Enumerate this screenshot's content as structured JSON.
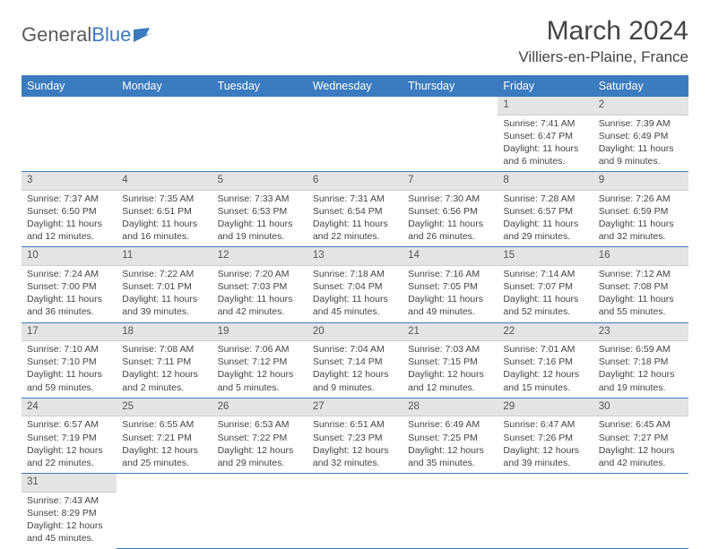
{
  "brand": {
    "part1": "General",
    "part2": "Blue"
  },
  "title": "March 2024",
  "location": "Villiers-en-Plaine, France",
  "colors": {
    "header_bg": "#3b7bbf",
    "header_text": "#ffffff",
    "daynum_bg": "#e4e4e4",
    "border": "#3b7bbf",
    "text": "#444444",
    "logo_gray": "#5a5a5a",
    "logo_blue": "#3b7bbf"
  },
  "weekdays": [
    "Sunday",
    "Monday",
    "Tuesday",
    "Wednesday",
    "Thursday",
    "Friday",
    "Saturday"
  ],
  "weeks": [
    [
      null,
      null,
      null,
      null,
      null,
      {
        "n": "1",
        "sr": "Sunrise: 7:41 AM",
        "ss": "Sunset: 6:47 PM",
        "dl1": "Daylight: 11 hours",
        "dl2": "and 6 minutes."
      },
      {
        "n": "2",
        "sr": "Sunrise: 7:39 AM",
        "ss": "Sunset: 6:49 PM",
        "dl1": "Daylight: 11 hours",
        "dl2": "and 9 minutes."
      }
    ],
    [
      {
        "n": "3",
        "sr": "Sunrise: 7:37 AM",
        "ss": "Sunset: 6:50 PM",
        "dl1": "Daylight: 11 hours",
        "dl2": "and 12 minutes."
      },
      {
        "n": "4",
        "sr": "Sunrise: 7:35 AM",
        "ss": "Sunset: 6:51 PM",
        "dl1": "Daylight: 11 hours",
        "dl2": "and 16 minutes."
      },
      {
        "n": "5",
        "sr": "Sunrise: 7:33 AM",
        "ss": "Sunset: 6:53 PM",
        "dl1": "Daylight: 11 hours",
        "dl2": "and 19 minutes."
      },
      {
        "n": "6",
        "sr": "Sunrise: 7:31 AM",
        "ss": "Sunset: 6:54 PM",
        "dl1": "Daylight: 11 hours",
        "dl2": "and 22 minutes."
      },
      {
        "n": "7",
        "sr": "Sunrise: 7:30 AM",
        "ss": "Sunset: 6:56 PM",
        "dl1": "Daylight: 11 hours",
        "dl2": "and 26 minutes."
      },
      {
        "n": "8",
        "sr": "Sunrise: 7:28 AM",
        "ss": "Sunset: 6:57 PM",
        "dl1": "Daylight: 11 hours",
        "dl2": "and 29 minutes."
      },
      {
        "n": "9",
        "sr": "Sunrise: 7:26 AM",
        "ss": "Sunset: 6:59 PM",
        "dl1": "Daylight: 11 hours",
        "dl2": "and 32 minutes."
      }
    ],
    [
      {
        "n": "10",
        "sr": "Sunrise: 7:24 AM",
        "ss": "Sunset: 7:00 PM",
        "dl1": "Daylight: 11 hours",
        "dl2": "and 36 minutes."
      },
      {
        "n": "11",
        "sr": "Sunrise: 7:22 AM",
        "ss": "Sunset: 7:01 PM",
        "dl1": "Daylight: 11 hours",
        "dl2": "and 39 minutes."
      },
      {
        "n": "12",
        "sr": "Sunrise: 7:20 AM",
        "ss": "Sunset: 7:03 PM",
        "dl1": "Daylight: 11 hours",
        "dl2": "and 42 minutes."
      },
      {
        "n": "13",
        "sr": "Sunrise: 7:18 AM",
        "ss": "Sunset: 7:04 PM",
        "dl1": "Daylight: 11 hours",
        "dl2": "and 45 minutes."
      },
      {
        "n": "14",
        "sr": "Sunrise: 7:16 AM",
        "ss": "Sunset: 7:05 PM",
        "dl1": "Daylight: 11 hours",
        "dl2": "and 49 minutes."
      },
      {
        "n": "15",
        "sr": "Sunrise: 7:14 AM",
        "ss": "Sunset: 7:07 PM",
        "dl1": "Daylight: 11 hours",
        "dl2": "and 52 minutes."
      },
      {
        "n": "16",
        "sr": "Sunrise: 7:12 AM",
        "ss": "Sunset: 7:08 PM",
        "dl1": "Daylight: 11 hours",
        "dl2": "and 55 minutes."
      }
    ],
    [
      {
        "n": "17",
        "sr": "Sunrise: 7:10 AM",
        "ss": "Sunset: 7:10 PM",
        "dl1": "Daylight: 11 hours",
        "dl2": "and 59 minutes."
      },
      {
        "n": "18",
        "sr": "Sunrise: 7:08 AM",
        "ss": "Sunset: 7:11 PM",
        "dl1": "Daylight: 12 hours",
        "dl2": "and 2 minutes."
      },
      {
        "n": "19",
        "sr": "Sunrise: 7:06 AM",
        "ss": "Sunset: 7:12 PM",
        "dl1": "Daylight: 12 hours",
        "dl2": "and 5 minutes."
      },
      {
        "n": "20",
        "sr": "Sunrise: 7:04 AM",
        "ss": "Sunset: 7:14 PM",
        "dl1": "Daylight: 12 hours",
        "dl2": "and 9 minutes."
      },
      {
        "n": "21",
        "sr": "Sunrise: 7:03 AM",
        "ss": "Sunset: 7:15 PM",
        "dl1": "Daylight: 12 hours",
        "dl2": "and 12 minutes."
      },
      {
        "n": "22",
        "sr": "Sunrise: 7:01 AM",
        "ss": "Sunset: 7:16 PM",
        "dl1": "Daylight: 12 hours",
        "dl2": "and 15 minutes."
      },
      {
        "n": "23",
        "sr": "Sunrise: 6:59 AM",
        "ss": "Sunset: 7:18 PM",
        "dl1": "Daylight: 12 hours",
        "dl2": "and 19 minutes."
      }
    ],
    [
      {
        "n": "24",
        "sr": "Sunrise: 6:57 AM",
        "ss": "Sunset: 7:19 PM",
        "dl1": "Daylight: 12 hours",
        "dl2": "and 22 minutes."
      },
      {
        "n": "25",
        "sr": "Sunrise: 6:55 AM",
        "ss": "Sunset: 7:21 PM",
        "dl1": "Daylight: 12 hours",
        "dl2": "and 25 minutes."
      },
      {
        "n": "26",
        "sr": "Sunrise: 6:53 AM",
        "ss": "Sunset: 7:22 PM",
        "dl1": "Daylight: 12 hours",
        "dl2": "and 29 minutes."
      },
      {
        "n": "27",
        "sr": "Sunrise: 6:51 AM",
        "ss": "Sunset: 7:23 PM",
        "dl1": "Daylight: 12 hours",
        "dl2": "and 32 minutes."
      },
      {
        "n": "28",
        "sr": "Sunrise: 6:49 AM",
        "ss": "Sunset: 7:25 PM",
        "dl1": "Daylight: 12 hours",
        "dl2": "and 35 minutes."
      },
      {
        "n": "29",
        "sr": "Sunrise: 6:47 AM",
        "ss": "Sunset: 7:26 PM",
        "dl1": "Daylight: 12 hours",
        "dl2": "and 39 minutes."
      },
      {
        "n": "30",
        "sr": "Sunrise: 6:45 AM",
        "ss": "Sunset: 7:27 PM",
        "dl1": "Daylight: 12 hours",
        "dl2": "and 42 minutes."
      }
    ],
    [
      {
        "n": "31",
        "sr": "Sunrise: 7:43 AM",
        "ss": "Sunset: 8:29 PM",
        "dl1": "Daylight: 12 hours",
        "dl2": "and 45 minutes."
      },
      null,
      null,
      null,
      null,
      null,
      null
    ]
  ]
}
